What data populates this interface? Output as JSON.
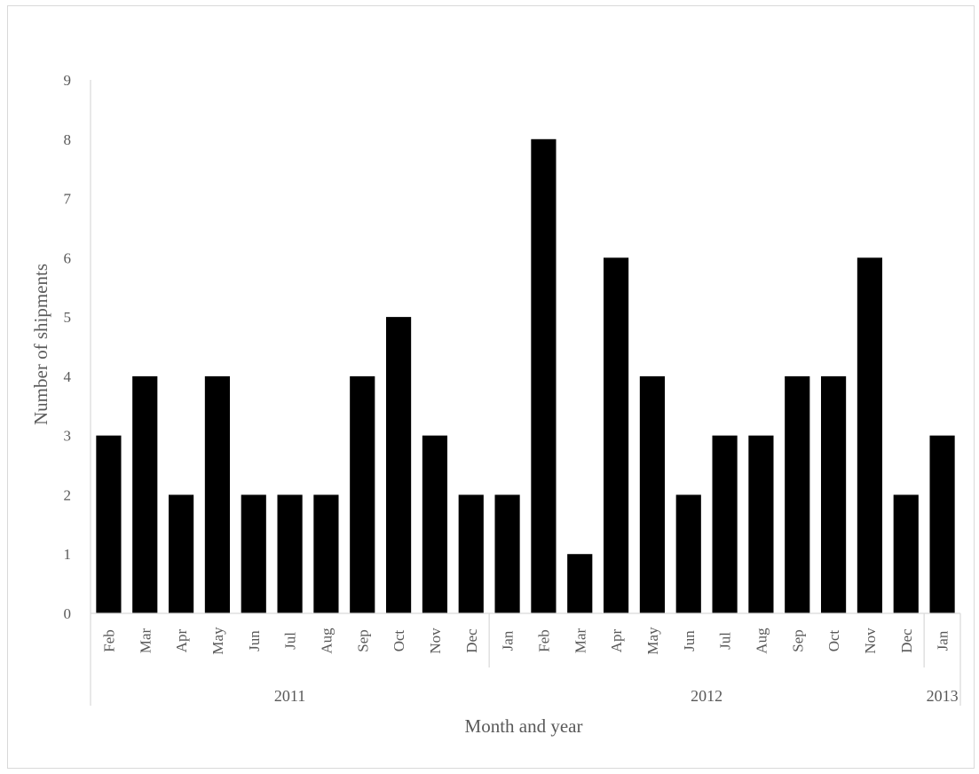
{
  "chart_data": {
    "type": "bar",
    "title": "",
    "xlabel": "Month and year",
    "ylabel": "Number of  shipments",
    "ylim": [
      0,
      9
    ],
    "yticks": [
      "0",
      "1",
      "2",
      "3",
      "4",
      "5",
      "6",
      "7",
      "8",
      "9"
    ],
    "grid": false,
    "bar_color": "#000000",
    "categories": [
      "Feb",
      "Mar",
      "Apr",
      "May",
      "Jun",
      "Jul",
      "Aug",
      "Sep",
      "Oct",
      "Nov",
      "Dec",
      "Jan",
      "Feb",
      "Mar",
      "Apr",
      "May",
      "Jun",
      "Jul",
      "Aug",
      "Sep",
      "Oct",
      "Nov",
      "Dec",
      "Jan"
    ],
    "values": [
      3,
      4,
      2,
      4,
      2,
      2,
      2,
      4,
      5,
      3,
      2,
      2,
      8,
      1,
      6,
      4,
      2,
      3,
      3,
      4,
      4,
      6,
      2,
      3
    ],
    "groups": [
      {
        "label": "2011",
        "count": 11
      },
      {
        "label": "2012",
        "count": 12
      },
      {
        "label": "2013",
        "count": 1
      }
    ]
  }
}
